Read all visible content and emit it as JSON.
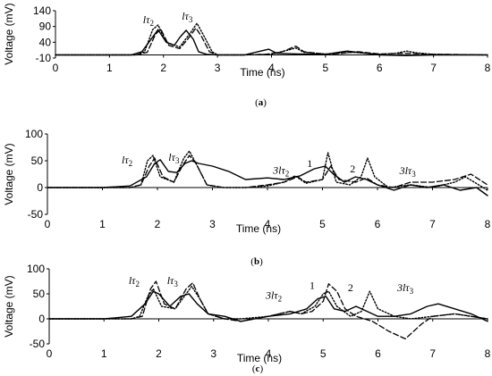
{
  "chart_data": [
    {
      "type": "line",
      "panel_label": "(a)",
      "panel_label_letter": "a",
      "xlabel": "Time (ns)",
      "ylabel": "Voltage (mV)",
      "xlim": [
        0,
        8
      ],
      "ylim": [
        -10,
        140
      ],
      "xticks": [
        "0",
        "1",
        "2",
        "3",
        "4",
        "5",
        "6",
        "7",
        "8"
      ],
      "yticks": [
        "140",
        "90",
        "40",
        "-10"
      ],
      "grid": false,
      "annotations": [
        {
          "text": "lτ",
          "sub": "2",
          "x": 1.62,
          "y": 100
        },
        {
          "text": "lτ",
          "sub": "3",
          "x": 2.34,
          "y": 112
        }
      ],
      "series": [
        {
          "style": "solid",
          "x": [
            0,
            1.4,
            1.6,
            1.75,
            1.9,
            2.05,
            2.2,
            2.3,
            2.42,
            2.55,
            2.65,
            2.8,
            3.0,
            3.5,
            3.8,
            3.95,
            4.1,
            4.5,
            5.0,
            5.4,
            5.7,
            6.0,
            6.5,
            7.0,
            8.0
          ],
          "y": [
            0,
            0,
            10,
            45,
            80,
            40,
            30,
            55,
            78,
            50,
            10,
            2,
            0,
            0,
            12,
            18,
            5,
            3,
            2,
            12,
            6,
            0,
            -2,
            0,
            0
          ]
        },
        {
          "style": "dashed",
          "x": [
            0,
            1.5,
            1.7,
            1.85,
            1.95,
            2.1,
            2.3,
            2.45,
            2.6,
            2.7,
            2.85,
            3.0,
            3.5,
            3.9,
            4.2,
            4.45,
            4.6,
            5.0,
            5.3,
            5.6,
            6.0,
            6.5,
            7.0,
            8.0
          ],
          "y": [
            0,
            0,
            8,
            65,
            82,
            30,
            20,
            50,
            85,
            60,
            10,
            0,
            0,
            2,
            10,
            28,
            10,
            2,
            5,
            10,
            3,
            5,
            2,
            0
          ]
        },
        {
          "style": "dotted",
          "x": [
            0,
            1.5,
            1.65,
            1.8,
            1.9,
            2.05,
            2.3,
            2.5,
            2.62,
            2.75,
            2.9,
            3.0,
            3.5,
            4.0,
            4.3,
            4.45,
            4.6,
            5.0,
            5.5,
            6.0,
            6.3,
            6.5,
            6.7,
            7.0,
            8.0
          ],
          "y": [
            0,
            0,
            10,
            80,
            95,
            40,
            25,
            70,
            100,
            60,
            10,
            0,
            0,
            2,
            15,
            22,
            8,
            3,
            8,
            2,
            5,
            12,
            6,
            2,
            0
          ]
        }
      ]
    },
    {
      "type": "line",
      "panel_label": "(b)",
      "panel_label_letter": "b",
      "xlabel": "Time (ns)",
      "ylabel": "Voltage (mV)",
      "xlim": [
        0,
        8
      ],
      "ylim": [
        -50,
        100
      ],
      "xticks": [
        "0",
        "1",
        "2",
        "3",
        "4",
        "5",
        "6",
        "7",
        "8"
      ],
      "yticks": [
        "100",
        "50",
        "0",
        "-50"
      ],
      "grid": false,
      "annotations": [
        {
          "text": "lτ",
          "sub": "2",
          "x": 1.35,
          "y": 45,
          "style": "italic"
        },
        {
          "text": "lτ",
          "sub": "3",
          "x": 2.2,
          "y": 50,
          "style": "italic"
        },
        {
          "text": "3lτ",
          "sub": "2",
          "x": 4.1,
          "y": 26,
          "style": "italic"
        },
        {
          "text": "1",
          "sub": "",
          "x": 4.72,
          "y": 38,
          "style": "normal"
        },
        {
          "text": "2",
          "sub": "",
          "x": 5.5,
          "y": 28,
          "style": "normal"
        },
        {
          "text": "3lτ",
          "sub": "3",
          "x": 6.4,
          "y": 25,
          "style": "italic"
        }
      ],
      "series": [
        {
          "style": "solid",
          "x": [
            0,
            1.0,
            1.5,
            1.8,
            1.95,
            2.05,
            2.2,
            2.35,
            2.5,
            2.62,
            2.75,
            3.0,
            3.3,
            3.6,
            4.0,
            4.3,
            4.6,
            4.85,
            5.05,
            5.2,
            5.4,
            5.6,
            5.8,
            6.0,
            6.3,
            6.6,
            6.9,
            7.2,
            7.5,
            7.8,
            8.0
          ],
          "y": [
            0,
            0,
            3,
            20,
            45,
            52,
            30,
            28,
            45,
            50,
            45,
            40,
            30,
            15,
            18,
            15,
            22,
            35,
            40,
            25,
            10,
            20,
            15,
            5,
            -5,
            5,
            0,
            5,
            -5,
            0,
            -15
          ]
        },
        {
          "style": "dashed",
          "x": [
            0,
            1.5,
            1.7,
            1.85,
            1.95,
            2.1,
            2.3,
            2.45,
            2.58,
            2.7,
            2.9,
            3.2,
            3.6,
            4.0,
            4.3,
            4.55,
            4.7,
            5.0,
            5.15,
            5.3,
            5.6,
            5.8,
            6.0,
            6.3,
            6.6,
            7.0,
            7.4,
            7.7,
            8.0
          ],
          "y": [
            0,
            0,
            5,
            40,
            55,
            20,
            10,
            40,
            60,
            45,
            5,
            0,
            0,
            5,
            10,
            20,
            10,
            15,
            40,
            15,
            10,
            18,
            5,
            0,
            10,
            10,
            15,
            25,
            5
          ]
        },
        {
          "style": "dotted",
          "x": [
            0,
            1.5,
            1.7,
            1.82,
            1.92,
            2.05,
            2.3,
            2.48,
            2.58,
            2.7,
            2.9,
            3.2,
            3.6,
            4.0,
            4.3,
            4.5,
            4.7,
            5.0,
            5.1,
            5.25,
            5.5,
            5.7,
            5.82,
            5.95,
            6.2,
            6.6,
            7.0,
            7.4,
            7.6,
            8.0
          ],
          "y": [
            0,
            0,
            5,
            50,
            60,
            20,
            10,
            55,
            68,
            45,
            5,
            0,
            0,
            3,
            10,
            22,
            8,
            15,
            65,
            10,
            5,
            20,
            55,
            20,
            0,
            5,
            0,
            10,
            20,
            -5
          ]
        }
      ]
    },
    {
      "type": "line",
      "panel_label": "(c)",
      "panel_label_letter": "c",
      "xlabel": "Time (ns)",
      "ylabel": "Voltage (mV)",
      "xlim": [
        0,
        8
      ],
      "ylim": [
        -50,
        100
      ],
      "xticks": [
        "0",
        "1",
        "2",
        "3",
        "4",
        "5",
        "6",
        "7",
        "8"
      ],
      "yticks": [
        "100",
        "50",
        "0",
        "-50"
      ],
      "grid": false,
      "annotations": [
        {
          "text": "lτ",
          "sub": "2",
          "x": 1.45,
          "y": 70,
          "style": "italic"
        },
        {
          "text": "lτ",
          "sub": "3",
          "x": 2.15,
          "y": 70,
          "style": "italic"
        },
        {
          "text": "3lτ",
          "sub": "2",
          "x": 3.95,
          "y": 40,
          "style": "italic"
        },
        {
          "text": "1",
          "sub": "",
          "x": 4.75,
          "y": 60,
          "style": "normal"
        },
        {
          "text": "2",
          "sub": "",
          "x": 5.45,
          "y": 55,
          "style": "normal"
        },
        {
          "text": "3lτ",
          "sub": "3",
          "x": 6.35,
          "y": 55,
          "style": "italic"
        }
      ],
      "series": [
        {
          "style": "solid",
          "x": [
            0,
            1.0,
            1.5,
            1.75,
            1.9,
            2.0,
            2.2,
            2.4,
            2.55,
            2.7,
            2.9,
            3.2,
            3.5,
            4.0,
            4.4,
            4.7,
            4.9,
            5.05,
            5.2,
            5.4,
            5.6,
            5.8,
            6.0,
            6.3,
            6.6,
            6.9,
            7.1,
            7.4,
            7.7,
            8.0
          ],
          "y": [
            0,
            0,
            5,
            30,
            55,
            50,
            25,
            45,
            50,
            30,
            10,
            5,
            -5,
            5,
            10,
            20,
            40,
            45,
            20,
            15,
            25,
            15,
            5,
            5,
            10,
            25,
            30,
            20,
            10,
            -5
          ]
        },
        {
          "style": "dashed",
          "x": [
            0,
            1.5,
            1.7,
            1.85,
            1.95,
            2.1,
            2.3,
            2.5,
            2.62,
            2.75,
            2.9,
            3.2,
            3.5,
            4.0,
            4.4,
            4.6,
            4.8,
            5.0,
            5.1,
            5.25,
            5.4,
            5.6,
            5.9,
            6.2,
            6.5,
            6.8,
            7.0,
            7.4,
            8.0
          ],
          "y": [
            0,
            0,
            5,
            60,
            75,
            30,
            20,
            60,
            72,
            40,
            10,
            0,
            -5,
            5,
            15,
            10,
            15,
            35,
            70,
            55,
            20,
            5,
            -5,
            -25,
            -40,
            -10,
            5,
            10,
            0
          ]
        },
        {
          "style": "dotted",
          "x": [
            0,
            1.5,
            1.65,
            1.8,
            1.9,
            2.05,
            2.3,
            2.5,
            2.6,
            2.75,
            2.9,
            3.2,
            3.5,
            4.0,
            4.4,
            4.6,
            4.85,
            5.0,
            5.1,
            5.25,
            5.5,
            5.7,
            5.85,
            6.0,
            6.3,
            6.6,
            7.0,
            7.4,
            8.0
          ],
          "y": [
            0,
            0,
            5,
            45,
            60,
            25,
            20,
            50,
            65,
            40,
            10,
            0,
            0,
            5,
            15,
            10,
            25,
            50,
            55,
            25,
            5,
            15,
            55,
            20,
            5,
            0,
            5,
            10,
            0
          ]
        }
      ]
    }
  ]
}
